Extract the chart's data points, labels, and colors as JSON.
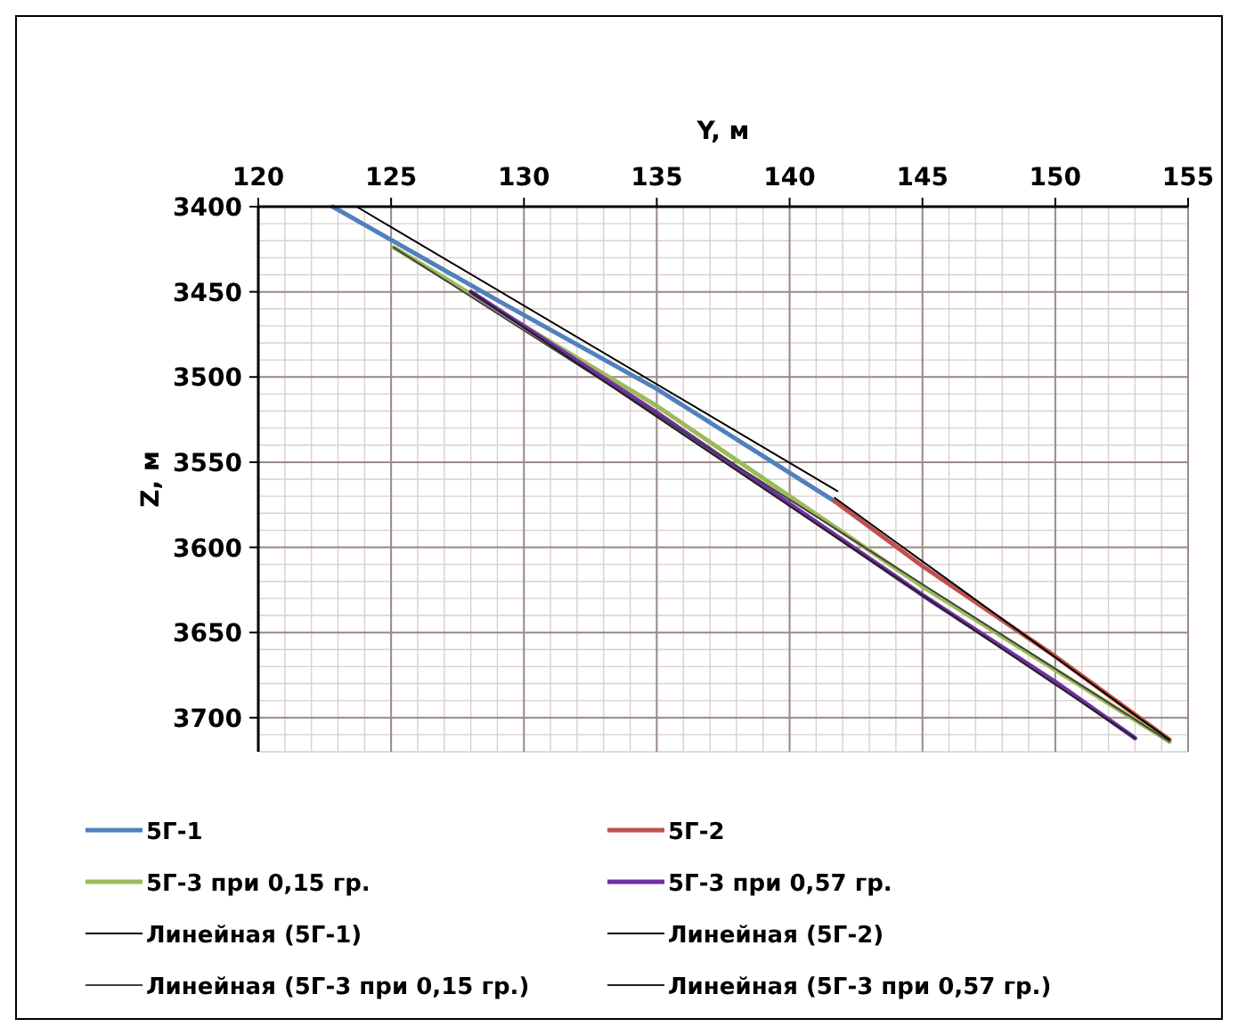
{
  "chart_data": {
    "type": "line",
    "xlabel": "Y, м",
    "ylabel": "Z, м",
    "xlim": [
      120,
      155
    ],
    "xticks": [
      120,
      125,
      130,
      135,
      140,
      145,
      150,
      155
    ],
    "ylim": [
      3720,
      3400
    ],
    "yticks": [
      3400,
      3450,
      3500,
      3550,
      3600,
      3650,
      3700
    ],
    "grid": true,
    "legend": "bottom",
    "marker": "none",
    "series": [
      {
        "name": "5Г-1",
        "color": "#4f81bd",
        "x": [
          122.8,
          129,
          135,
          141.7
        ],
        "values": [
          3400,
          3455,
          3507,
          3573
        ]
      },
      {
        "name": "5Г-2",
        "color": "#c0504d",
        "x": [
          141.7,
          145,
          150,
          154.3
        ],
        "values": [
          3573,
          3611,
          3664,
          3713
        ]
      },
      {
        "name": "5Г-3 при 0,15 гр.",
        "color": "#9bbb59",
        "x": [
          125.1,
          135,
          145,
          154.3
        ],
        "values": [
          3424,
          3517,
          3623,
          3714
        ]
      },
      {
        "name": "5Г-3 при 0,57 гр.",
        "color": "#7030a0",
        "x": [
          128,
          135,
          145,
          150,
          153
        ],
        "values": [
          3450,
          3521,
          3628,
          3679,
          3712
        ]
      },
      {
        "name": "Линейная (5Г-1)",
        "color": "#000000",
        "x": [
          123.7,
          141.8
        ],
        "values": [
          3400,
          3567
        ]
      },
      {
        "name": "Линейная (5Г-2)",
        "color": "#000000",
        "x": [
          141.7,
          154.3
        ],
        "values": [
          3571,
          3713
        ]
      },
      {
        "name": "Линейная (5Г-3 при 0,15 гр.)",
        "color": "#404040",
        "x": [
          125.1,
          154.3
        ],
        "values": [
          3424,
          3714
        ]
      },
      {
        "name": "Линейная (5Г-3 при 0,57 гр.)",
        "color": "#202020",
        "x": [
          128,
          153
        ],
        "values": [
          3450,
          3712
        ]
      }
    ]
  }
}
